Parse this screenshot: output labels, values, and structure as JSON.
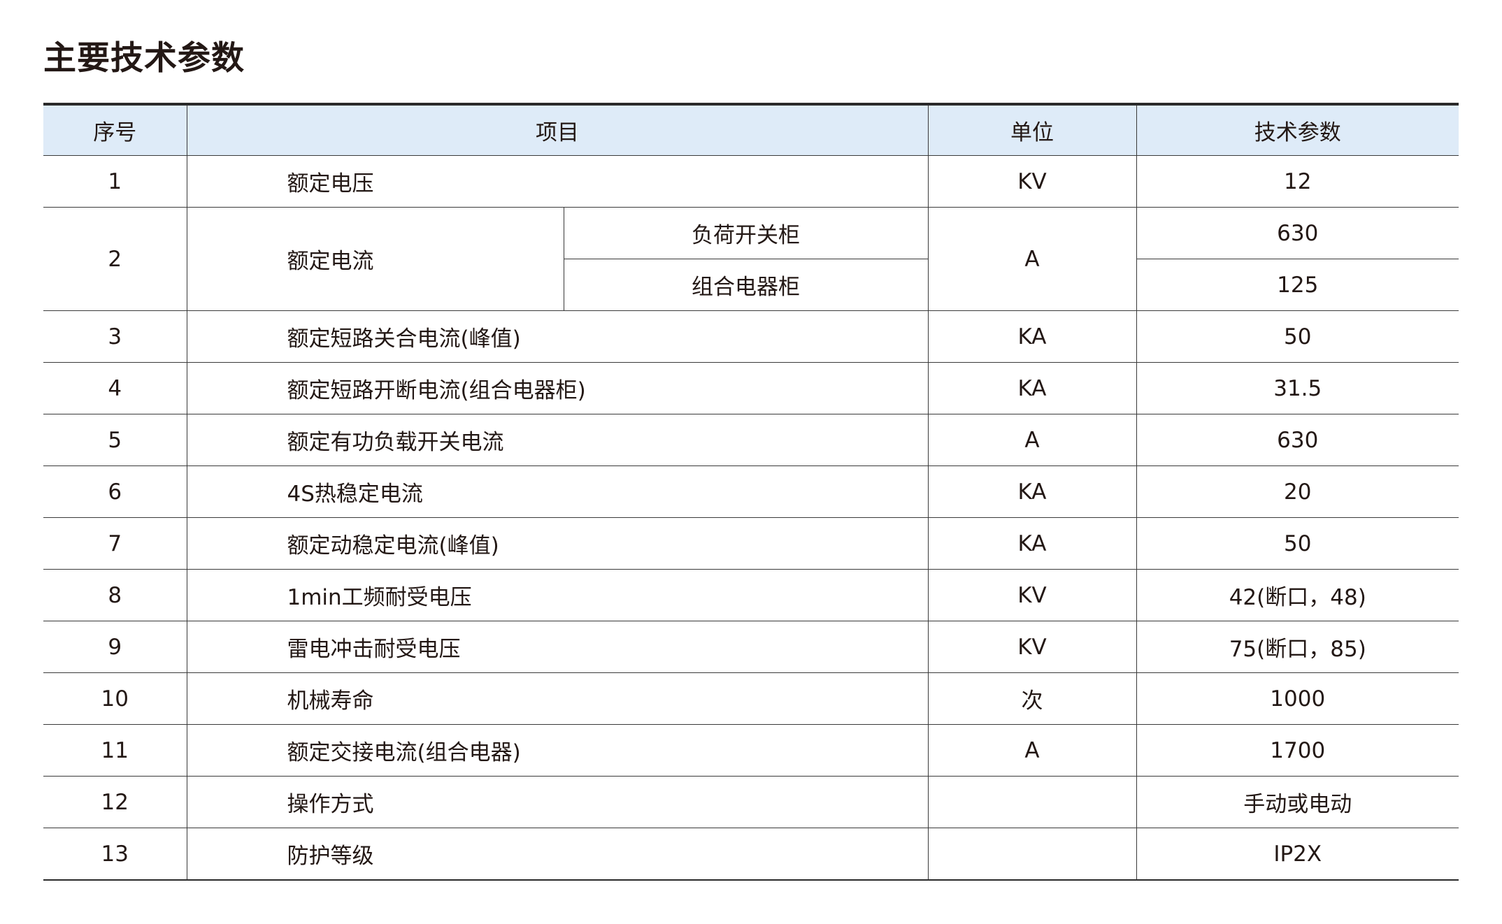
{
  "title": "主要技术参数",
  "table": {
    "headers": [
      "序号",
      "项目",
      "单位",
      "技术参数"
    ],
    "rows": [
      {
        "no": "1",
        "item": "额定电压",
        "unit": "KV",
        "value": "12"
      },
      {
        "no": "2",
        "item": "额定电流",
        "unit": "A",
        "sub": [
          {
            "label": "负荷开关柜",
            "value": "630"
          },
          {
            "label": "组合电器柜",
            "value": "125"
          }
        ]
      },
      {
        "no": "3",
        "item": "额定短路关合电流(峰值)",
        "unit": "KA",
        "value": "50"
      },
      {
        "no": "4",
        "item": "额定短路开断电流(组合电器柜)",
        "unit": "KA",
        "value": "31.5"
      },
      {
        "no": "5",
        "item": "额定有功负载开关电流",
        "unit": "A",
        "value": "630"
      },
      {
        "no": "6",
        "item": "4S热稳定电流",
        "unit": "KA",
        "value": "20"
      },
      {
        "no": "7",
        "item": "额定动稳定电流(峰值)",
        "unit": "KA",
        "value": "50"
      },
      {
        "no": "8",
        "item": "1min工频耐受电压",
        "unit": "KV",
        "value": "42(断口，48)"
      },
      {
        "no": "9",
        "item": "雷电冲击耐受电压",
        "unit": "KV",
        "value": "75(断口，85)"
      },
      {
        "no": "10",
        "item": "机械寿命",
        "unit": "次",
        "value": "1000"
      },
      {
        "no": "11",
        "item": "额定交接电流(组合电器)",
        "unit": "A",
        "value": "1700"
      },
      {
        "no": "12",
        "item": "操作方式",
        "unit": "",
        "value": "手动或电动"
      },
      {
        "no": "13",
        "item": "防护等级",
        "unit": "",
        "value": "IP2X"
      }
    ]
  }
}
